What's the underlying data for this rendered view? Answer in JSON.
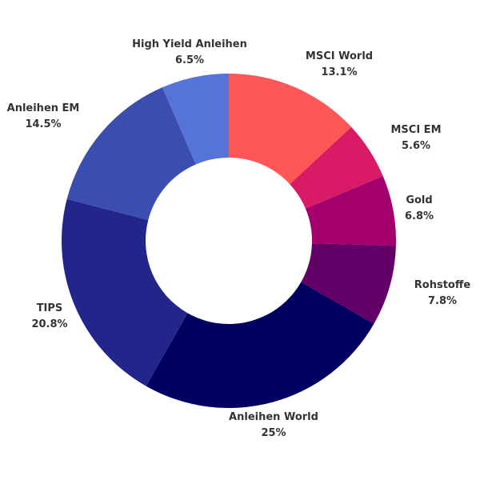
{
  "chart_data": {
    "type": "pie",
    "variant": "donut",
    "title": "",
    "legend": "none",
    "slices": [
      {
        "label": "MSCI World",
        "value": 13.1,
        "display": "13.1%",
        "color": "#ff5757"
      },
      {
        "label": "MSCI EM",
        "value": 5.6,
        "display": "5.6%",
        "color": "#d91a67"
      },
      {
        "label": "Gold",
        "value": 6.8,
        "display": "6.8%",
        "color": "#a3006e"
      },
      {
        "label": "Rohstoffe",
        "value": 7.8,
        "display": "7.8%",
        "color": "#620068"
      },
      {
        "label": "Anleihen World",
        "value": 25,
        "display": "25%",
        "color": "#000060"
      },
      {
        "label": "TIPS",
        "value": 20.8,
        "display": "20.8%",
        "color": "#22258a"
      },
      {
        "label": "Anleihen EM",
        "value": 14.5,
        "display": "14.5%",
        "color": "#3c4db0"
      },
      {
        "label": "High Yield Anleihen",
        "value": 6.5,
        "display": "6.5%",
        "color": "#5574d8"
      }
    ]
  }
}
